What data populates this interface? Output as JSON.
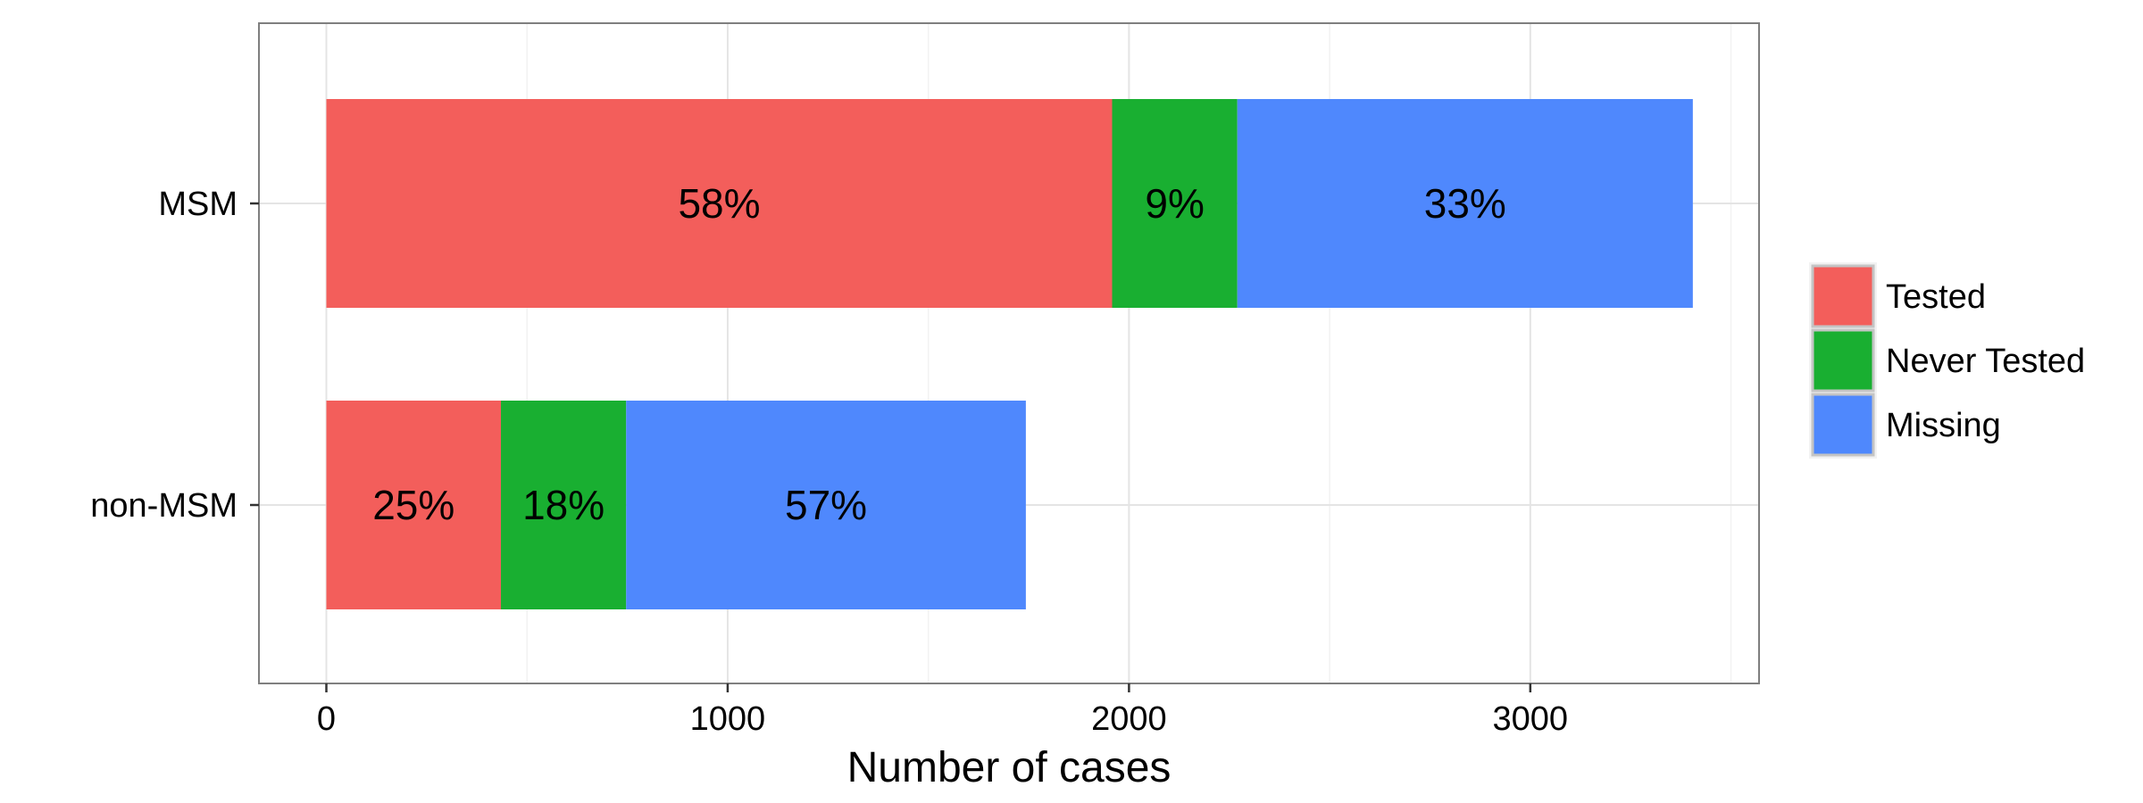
{
  "chart_data": {
    "type": "bar",
    "orientation": "horizontal",
    "stacked": true,
    "categories": [
      "MSM",
      "non-MSM"
    ],
    "series": [
      {
        "name": "Tested",
        "color": "#F35E5B",
        "values": [
          1958,
          435
        ],
        "labels": [
          "58%",
          "25%"
        ]
      },
      {
        "name": "Never Tested",
        "color": "#19AF31",
        "values": [
          312,
          312
        ],
        "labels": [
          "9%",
          "18%"
        ]
      },
      {
        "name": "Missing",
        "color": "#4F88FD",
        "values": [
          1135,
          996
        ],
        "labels": [
          "33%",
          "57%"
        ]
      }
    ],
    "xlabel": "Number of cases",
    "ylabel": "",
    "xlim": [
      -168,
      3570
    ],
    "xticks": [
      0,
      1000,
      2000,
      3000
    ],
    "x_minor_ticks": [
      500,
      1500,
      2500,
      3500
    ],
    "grid": true,
    "legend_position": "right"
  }
}
